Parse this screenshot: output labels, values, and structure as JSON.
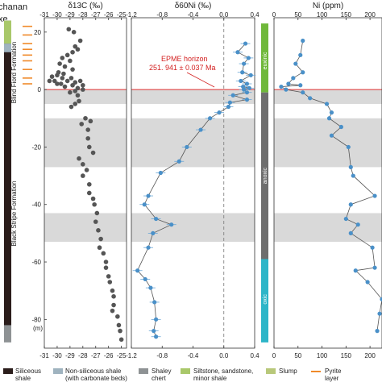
{
  "header": {
    "section_name": "chanan",
    "section_name_2": "xe"
  },
  "strat": {
    "upper_formation": "Blind Fiord Formation",
    "lower_formation": "Black Stripe Formation"
  },
  "depth_unit": "(m)",
  "colors": {
    "shale": "#2b1d1b",
    "carbonate_shale": "#9fb3bf",
    "chert": "#8e9294",
    "siltstone": "#a9c86a",
    "slump": "#b8c87a",
    "pyrite": "#f08a2a",
    "gray_band": "#d9d9d9",
    "carbon_point": "#555555",
    "ni_point": "#4a90c8",
    "line": "#555555",
    "boundary": "#e03030",
    "euxinic": "#6fb83a",
    "anoxic": "#6e6e6e",
    "oxic": "#2db5c8"
  },
  "redox": {
    "euxinic": "euxinic",
    "anoxic": "anoxic",
    "oxic": "oxic"
  },
  "annotation": {
    "line1": "EPME horizon",
    "line2": "251. 941 ± 0.037 Ma"
  },
  "legend": {
    "siliceous": [
      "Siliceous",
      "shale"
    ],
    "nonsiliceous": [
      "Non-siliceous shale",
      "(with carbonate beds)"
    ],
    "chert": [
      "Shaley",
      "chert"
    ],
    "siltstone": [
      "Siltstone, sandstone,",
      "minor shale"
    ],
    "slump": [
      "Slump"
    ],
    "pyrite": [
      "Pyrite",
      "layer"
    ]
  },
  "chart_data": [
    {
      "type": "scatter",
      "title": "δ13C (‰)",
      "ylabel": "",
      "ylim": [
        -90,
        25
      ],
      "xlim": [
        -31,
        -24.6
      ],
      "xticks": [
        -31,
        -30,
        -29,
        -28,
        -27,
        -26,
        -25
      ],
      "yticks": [
        20,
        0,
        -20,
        -40,
        -60,
        -80
      ],
      "gray_bands": [
        [
          0,
          -5
        ],
        [
          -10,
          -27
        ],
        [
          -43,
          -53
        ]
      ],
      "boundary_y": 0,
      "points": [
        [
          -29.1,
          21
        ],
        [
          -28.7,
          20
        ],
        [
          -28.2,
          17
        ],
        [
          -28.6,
          15
        ],
        [
          -28.4,
          14
        ],
        [
          -28.8,
          13
        ],
        [
          -29.2,
          12
        ],
        [
          -29.6,
          11
        ],
        [
          -29.0,
          10
        ],
        [
          -29.8,
          9
        ],
        [
          -29.4,
          8
        ],
        [
          -28.8,
          7
        ],
        [
          -29.9,
          6
        ],
        [
          -29.5,
          5.5
        ],
        [
          -30.0,
          5
        ],
        [
          -30.4,
          4.5
        ],
        [
          -29.6,
          4
        ],
        [
          -28.9,
          4
        ],
        [
          -30.6,
          3
        ],
        [
          -30.2,
          3
        ],
        [
          -29.2,
          3
        ],
        [
          -28.2,
          3
        ],
        [
          -28.6,
          2.5
        ],
        [
          -30.0,
          2
        ],
        [
          -29.7,
          2
        ],
        [
          -28.8,
          1.5
        ],
        [
          -28.0,
          1.5
        ],
        [
          -29.4,
          1
        ],
        [
          -28.4,
          0.5
        ],
        [
          -28.0,
          0
        ],
        [
          -28.6,
          -0.5
        ],
        [
          -29.0,
          -1
        ],
        [
          -28.4,
          -2
        ],
        [
          -28.3,
          -4
        ],
        [
          -28.6,
          -5
        ],
        [
          -28.9,
          -6
        ],
        [
          -27.8,
          -10
        ],
        [
          -28.1,
          -12
        ],
        [
          -27.4,
          -11
        ],
        [
          -27.6,
          -14
        ],
        [
          -27.6,
          -17
        ],
        [
          -27.5,
          -20
        ],
        [
          -27.2,
          -22
        ],
        [
          -28.3,
          -24
        ],
        [
          -28.0,
          -26
        ],
        [
          -27.7,
          -28
        ],
        [
          -28.0,
          -30
        ],
        [
          -27.5,
          -33
        ],
        [
          -27.5,
          -36
        ],
        [
          -27.2,
          -38
        ],
        [
          -27.1,
          -40
        ],
        [
          -26.9,
          -43
        ],
        [
          -27.0,
          -46
        ],
        [
          -26.8,
          -49
        ],
        [
          -26.6,
          -52
        ],
        [
          -26.7,
          -55
        ],
        [
          -26.4,
          -57
        ],
        [
          -26.2,
          -60
        ],
        [
          -26.2,
          -62
        ],
        [
          -26.0,
          -65
        ],
        [
          -25.9,
          -67
        ],
        [
          -25.7,
          -70
        ],
        [
          -25.6,
          -72
        ],
        [
          -25.6,
          -75
        ],
        [
          -25.7,
          -77
        ],
        [
          -25.3,
          -79
        ],
        [
          -25.2,
          -82
        ],
        [
          -25.1,
          -84
        ],
        [
          -25.0,
          -87
        ]
      ]
    },
    {
      "type": "line",
      "title": "δ60Ni (‰)",
      "ylim": [
        -90,
        25
      ],
      "xlim": [
        -1.2,
        0.4
      ],
      "xticks": [
        -1.2,
        -0.8,
        -0.4,
        0.0,
        0.4
      ],
      "xtick_labels": [
        "-1.2",
        "-0.8",
        "-0.4",
        "0.0",
        "0.4"
      ],
      "reference_x": 0.0,
      "gray_bands": [
        [
          0,
          -5
        ],
        [
          -10,
          -27
        ],
        [
          -43,
          -53
        ]
      ],
      "boundary_y": 0,
      "points": [
        [
          0.28,
          16
        ],
        [
          0.18,
          13
        ],
        [
          0.32,
          11
        ],
        [
          0.26,
          9
        ],
        [
          0.24,
          6
        ],
        [
          0.35,
          5
        ],
        [
          0.22,
          3
        ],
        [
          0.3,
          2
        ],
        [
          0.25,
          1
        ],
        [
          0.33,
          0.5
        ],
        [
          0.26,
          0
        ],
        [
          0.3,
          -1
        ],
        [
          0.12,
          -2
        ],
        [
          0.3,
          -3.5
        ],
        [
          0.08,
          -4.5
        ],
        [
          0.06,
          -6
        ],
        [
          -0.06,
          -8
        ],
        [
          -0.18,
          -10
        ],
        [
          -0.3,
          -14
        ],
        [
          -0.48,
          -20
        ],
        [
          -0.58,
          -25
        ],
        [
          -0.82,
          -29
        ],
        [
          -0.98,
          -37
        ],
        [
          -1.03,
          -40
        ],
        [
          -0.88,
          -45
        ],
        [
          -0.68,
          -47
        ],
        [
          -0.92,
          -50
        ],
        [
          -0.98,
          -55
        ],
        [
          -1.12,
          -63
        ],
        [
          -1.02,
          -66
        ],
        [
          -0.95,
          -69
        ],
        [
          -0.9,
          -74
        ],
        [
          -0.88,
          -80
        ],
        [
          -0.91,
          -84
        ],
        [
          -0.88,
          -86
        ]
      ]
    },
    {
      "type": "line",
      "title": "Ni (ppm)",
      "ylim": [
        -90,
        25
      ],
      "xlim": [
        0,
        225
      ],
      "xticks": [
        0,
        50,
        100,
        150,
        200
      ],
      "gray_bands": [
        [
          0,
          -5
        ],
        [
          -10,
          -27
        ],
        [
          -43,
          -53
        ]
      ],
      "boundary_y": 0,
      "points": [
        [
          60,
          17
        ],
        [
          55,
          12
        ],
        [
          45,
          9
        ],
        [
          60,
          6
        ],
        [
          40,
          4
        ],
        [
          30,
          2
        ],
        [
          55,
          1.5
        ],
        [
          15,
          1
        ],
        [
          25,
          0
        ],
        [
          60,
          -1
        ],
        [
          75,
          -3
        ],
        [
          110,
          -5
        ],
        [
          120,
          -8
        ],
        [
          115,
          -10
        ],
        [
          140,
          -13
        ],
        [
          120,
          -16
        ],
        [
          155,
          -20
        ],
        [
          160,
          -27
        ],
        [
          165,
          -30
        ],
        [
          210,
          -37
        ],
        [
          160,
          -40
        ],
        [
          150,
          -45
        ],
        [
          175,
          -47
        ],
        [
          160,
          -50
        ],
        [
          205,
          -55
        ],
        [
          210,
          -62
        ],
        [
          170,
          -63
        ],
        [
          195,
          -67
        ],
        [
          225,
          -73
        ],
        [
          220,
          -78
        ],
        [
          215,
          -84
        ]
      ]
    }
  ]
}
